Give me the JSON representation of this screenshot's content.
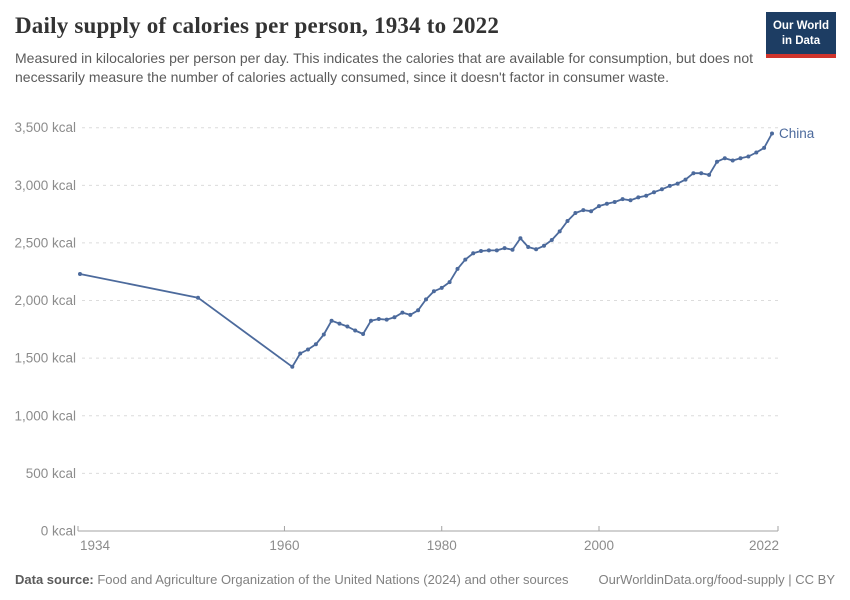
{
  "header": {
    "title": "Daily supply of calories per person, 1934 to 2022",
    "subtitle": "Measured in kilocalories per person per day. This indicates the calories that are available for consumption, but does not necessarily measure the number of calories actually consumed, since it doesn't factor in consumer waste."
  },
  "logo": {
    "line1": "Our World",
    "line2": "in Data",
    "background_color": "#1d3d63",
    "stripe_color": "#d0342c"
  },
  "chart_data": {
    "type": "line",
    "title": "Daily supply of calories per person, 1934 to 2022",
    "xlabel": "",
    "ylabel": "",
    "unit": "kcal",
    "x_range": [
      1934,
      2022
    ],
    "y_range": [
      0,
      3500
    ],
    "grid": "horizontal-dashed",
    "legend_position": "end-of-line-label",
    "x_ticks": [
      {
        "year": 1934,
        "label": "1934"
      },
      {
        "year": 1960,
        "label": "1960"
      },
      {
        "year": 1980,
        "label": "1980"
      },
      {
        "year": 2000,
        "label": "2000"
      },
      {
        "year": 2022,
        "label": "2022"
      }
    ],
    "y_ticks": [
      {
        "value": 0,
        "label": "0 kcal"
      },
      {
        "value": 500,
        "label": "500 kcal"
      },
      {
        "value": 1000,
        "label": "1,000 kcal"
      },
      {
        "value": 1500,
        "label": "1,500 kcal"
      },
      {
        "value": 2000,
        "label": "2,000 kcal"
      },
      {
        "value": 2500,
        "label": "2,500 kcal"
      },
      {
        "value": 3000,
        "label": "3,000 kcal"
      },
      {
        "value": 3500,
        "label": "3,500 kcal"
      }
    ],
    "series": [
      {
        "name": "China",
        "color": "#4C6A9C",
        "points": [
          [
            1934,
            2230
          ],
          [
            1949,
            2025
          ],
          [
            1961,
            1425
          ],
          [
            1962,
            1540
          ],
          [
            1963,
            1575
          ],
          [
            1964,
            1620
          ],
          [
            1965,
            1705
          ],
          [
            1966,
            1825
          ],
          [
            1967,
            1800
          ],
          [
            1968,
            1775
          ],
          [
            1969,
            1740
          ],
          [
            1970,
            1710
          ],
          [
            1971,
            1825
          ],
          [
            1972,
            1840
          ],
          [
            1973,
            1835
          ],
          [
            1974,
            1855
          ],
          [
            1975,
            1895
          ],
          [
            1976,
            1875
          ],
          [
            1977,
            1915
          ],
          [
            1978,
            2010
          ],
          [
            1979,
            2080
          ],
          [
            1980,
            2110
          ],
          [
            1981,
            2160
          ],
          [
            1982,
            2275
          ],
          [
            1983,
            2355
          ],
          [
            1984,
            2410
          ],
          [
            1985,
            2430
          ],
          [
            1986,
            2435
          ],
          [
            1987,
            2435
          ],
          [
            1988,
            2455
          ],
          [
            1989,
            2440
          ],
          [
            1990,
            2540
          ],
          [
            1991,
            2465
          ],
          [
            1992,
            2445
          ],
          [
            1993,
            2475
          ],
          [
            1994,
            2525
          ],
          [
            1995,
            2600
          ],
          [
            1996,
            2690
          ],
          [
            1997,
            2760
          ],
          [
            1998,
            2785
          ],
          [
            1999,
            2775
          ],
          [
            2000,
            2820
          ],
          [
            2001,
            2840
          ],
          [
            2002,
            2855
          ],
          [
            2003,
            2880
          ],
          [
            2004,
            2870
          ],
          [
            2005,
            2895
          ],
          [
            2006,
            2910
          ],
          [
            2007,
            2940
          ],
          [
            2008,
            2965
          ],
          [
            2009,
            2995
          ],
          [
            2010,
            3015
          ],
          [
            2011,
            3050
          ],
          [
            2012,
            3105
          ],
          [
            2013,
            3105
          ],
          [
            2014,
            3090
          ],
          [
            2015,
            3205
          ],
          [
            2016,
            3235
          ],
          [
            2017,
            3215
          ],
          [
            2018,
            3235
          ],
          [
            2019,
            3250
          ],
          [
            2020,
            3285
          ],
          [
            2021,
            3325
          ],
          [
            2022,
            3450
          ]
        ]
      }
    ]
  },
  "footer": {
    "data_source_label": "Data source:",
    "data_source_text": " Food and Agriculture Organization of the United Nations (2024) and other sources",
    "right_text": "OurWorldinData.org/food-supply | CC BY"
  }
}
